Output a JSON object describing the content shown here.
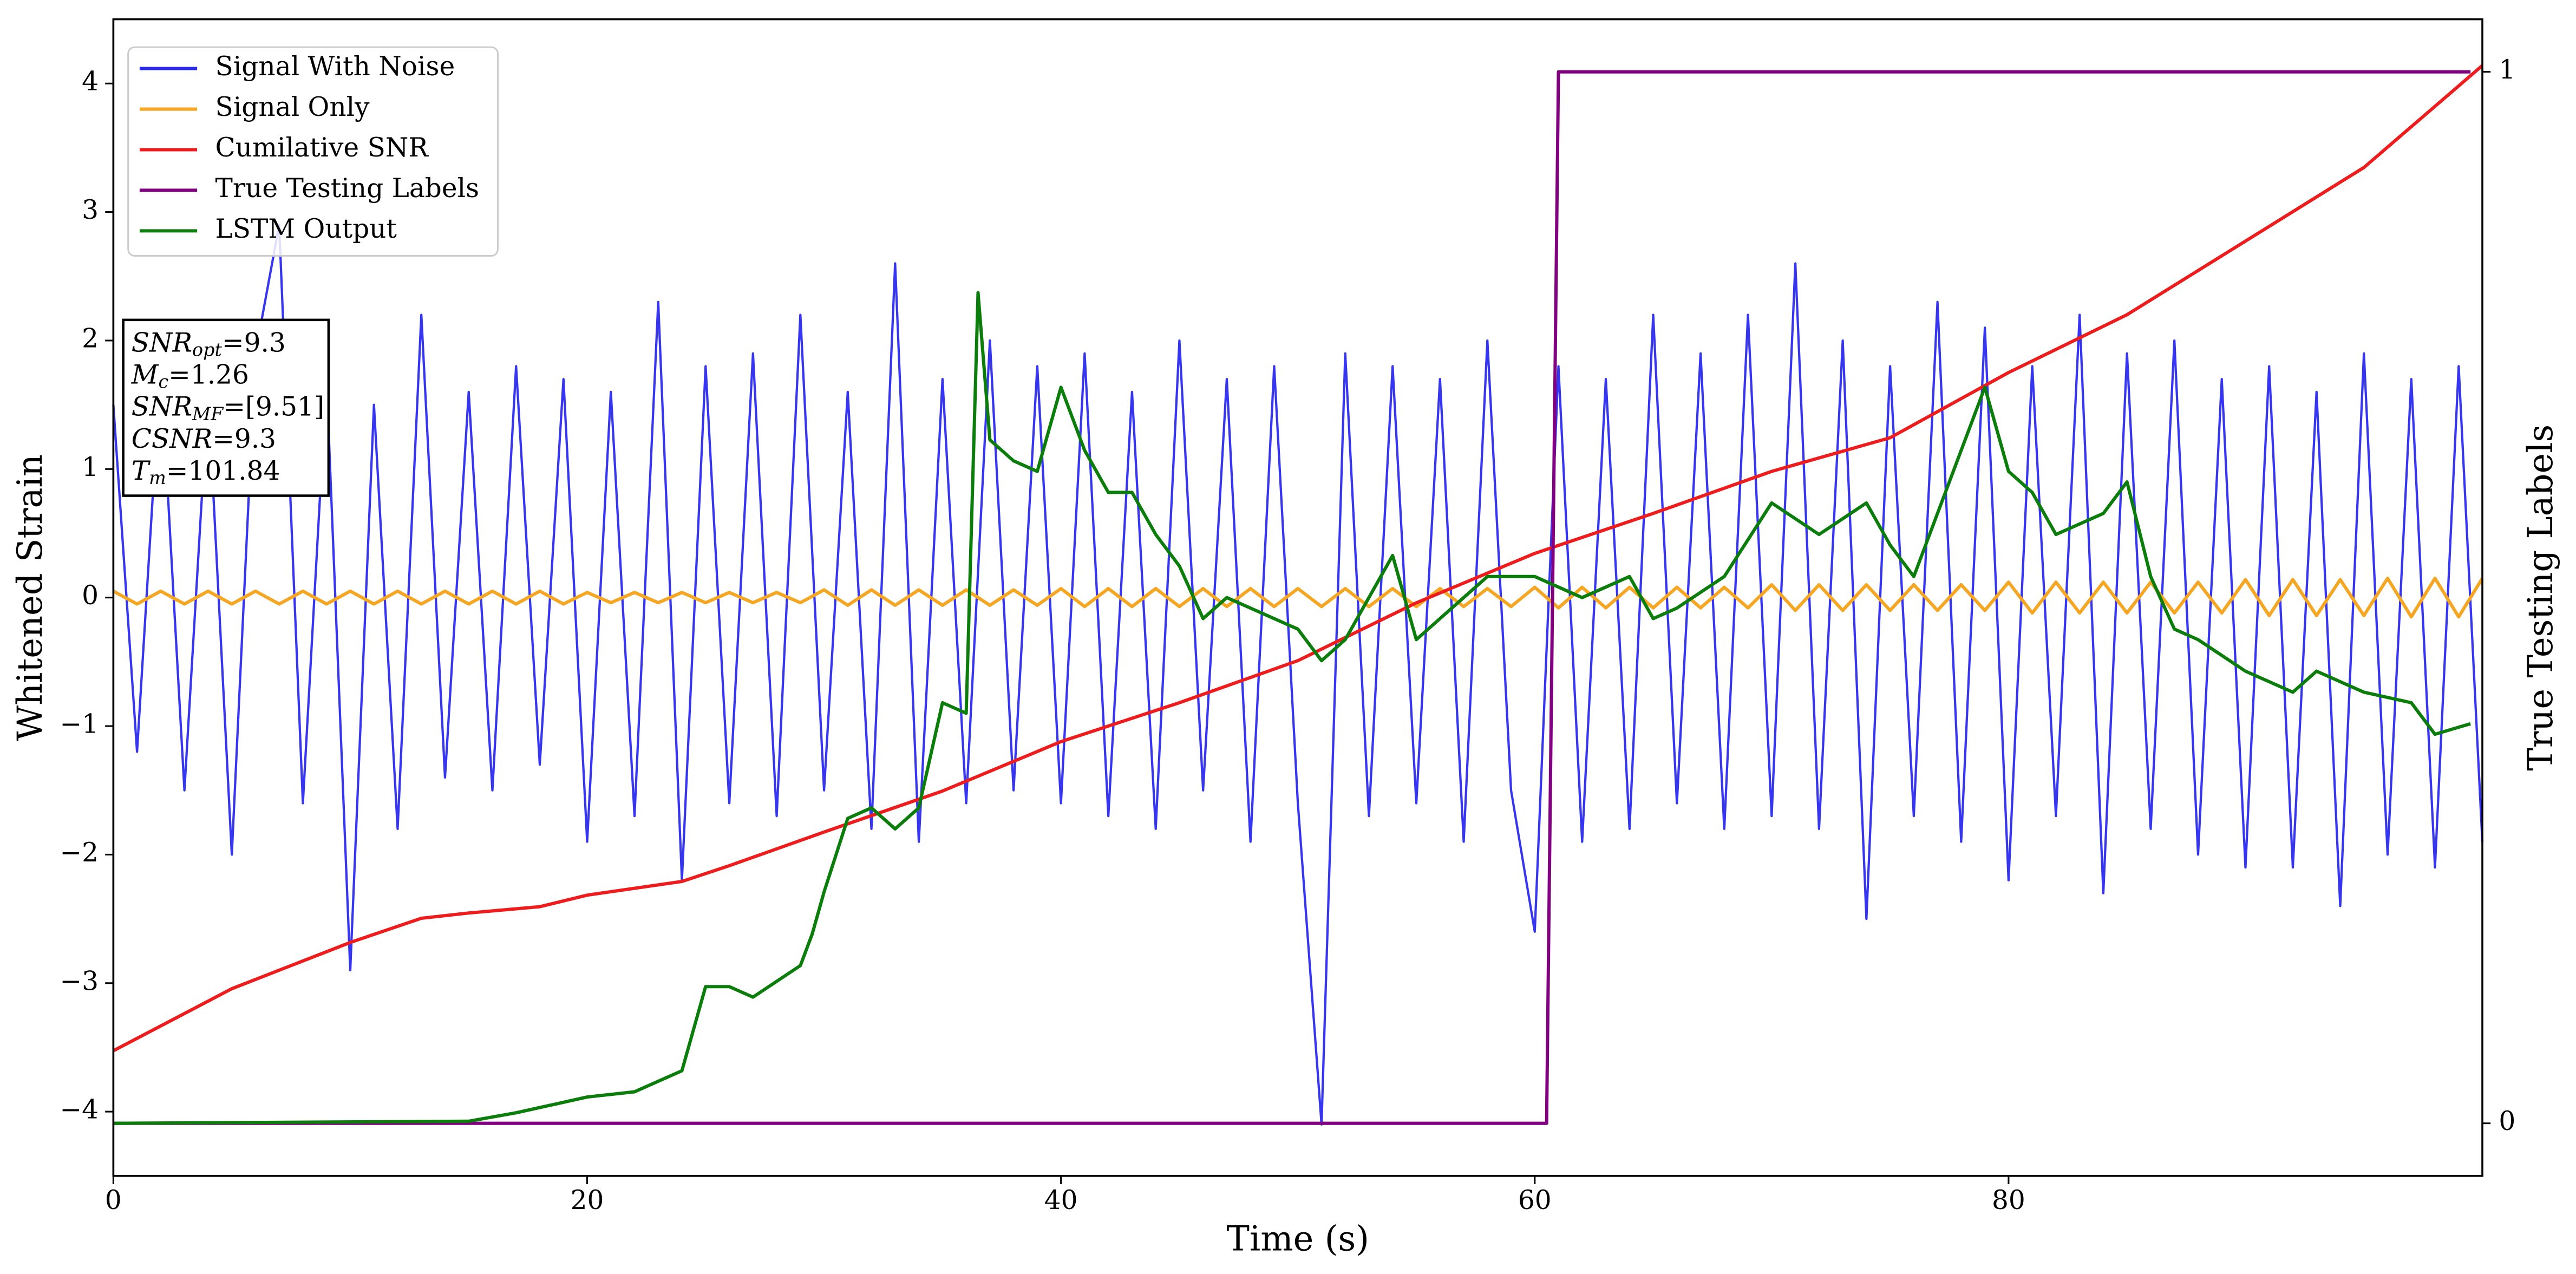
{
  "chart_data": {
    "type": "line",
    "xlabel": "Time (s)",
    "ylabel": "Whitened Strain",
    "y2label": "True Testing Labels",
    "xlim": [
      0,
      100
    ],
    "xticks": [
      0,
      20,
      40,
      60,
      80
    ],
    "ylim": [
      -4.5,
      4.5
    ],
    "yticks": [
      {
        "value": -4,
        "label": "−4"
      },
      {
        "value": -3,
        "label": "−3"
      },
      {
        "value": -2,
        "label": "−2"
      },
      {
        "value": -1,
        "label": "−1"
      },
      0,
      1,
      2,
      3,
      4
    ],
    "y2lim": [
      -0.05,
      1.05
    ],
    "y2ticks": [
      0,
      1
    ],
    "legend": "upper left",
    "annotation": [
      {
        "base": "SNR",
        "sub": "opt",
        "text": "=9.3"
      },
      {
        "base": "M",
        "sub": "c",
        "text": "=1.26"
      },
      {
        "base": "SNR",
        "sub": "MF",
        "text": "=[9.51]"
      },
      {
        "base": "CSNR",
        "sub": "",
        "text": "=9.3"
      },
      {
        "base": "T",
        "sub": "m",
        "text": "=101.84"
      }
    ],
    "series": [
      {
        "name": "Signal With Noise",
        "color": "#2b2bf0",
        "x": [
          0,
          1,
          2,
          3,
          4,
          5,
          6,
          7,
          8,
          9,
          10,
          11,
          12,
          13,
          14,
          15,
          16,
          17,
          18,
          19,
          20,
          21,
          22,
          23,
          24,
          25,
          26,
          27,
          28,
          29,
          30,
          31,
          32,
          33,
          34,
          35,
          36,
          37,
          38,
          39,
          40,
          41,
          42,
          43,
          44,
          45,
          46,
          47,
          48,
          49,
          50,
          51,
          52,
          53,
          54,
          55,
          56,
          57,
          58,
          59,
          60,
          61,
          62,
          63,
          64,
          65,
          66,
          67,
          68,
          69,
          70,
          71,
          72,
          73,
          74,
          75,
          76,
          77,
          78,
          79,
          80,
          81,
          82,
          83,
          84,
          85,
          86,
          87,
          88,
          89,
          90,
          91,
          92,
          93,
          94,
          95,
          96,
          97,
          98,
          99,
          100
        ],
        "values": [
          1.5,
          -1.2,
          1.8,
          -1.5,
          1.6,
          -2.0,
          1.9,
          2.9,
          -1.6,
          1.7,
          -2.9,
          1.5,
          -1.8,
          2.2,
          -1.4,
          1.6,
          -1.5,
          1.8,
          -1.3,
          1.7,
          -1.9,
          1.6,
          -1.7,
          2.3,
          -2.2,
          1.8,
          -1.6,
          1.9,
          -1.7,
          2.2,
          -1.5,
          1.6,
          -1.8,
          2.6,
          -1.9,
          1.7,
          -1.6,
          2.0,
          -1.5,
          1.8,
          -1.6,
          1.9,
          -1.7,
          1.6,
          -1.8,
          2.0,
          -1.5,
          1.7,
          -1.9,
          1.8,
          -1.6,
          -4.1,
          1.9,
          -1.7,
          1.8,
          -1.6,
          1.7,
          -1.9,
          2.0,
          -1.5,
          -2.6,
          1.8,
          -1.9,
          1.7,
          -1.8,
          2.2,
          -1.6,
          1.9,
          -1.8,
          2.2,
          -1.7,
          2.6,
          -1.8,
          2.0,
          -2.5,
          1.8,
          -1.7,
          2.3,
          -1.9,
          2.1,
          -2.2,
          1.8,
          -1.7,
          2.2,
          -2.3,
          1.9,
          -1.8,
          2.0,
          -2.0,
          1.7,
          -2.1,
          1.8,
          -2.1,
          1.6,
          -2.4,
          1.9,
          -2.0,
          1.7,
          -2.1,
          1.8,
          -1.9
        ]
      },
      {
        "name": "Signal Only",
        "color": "#f5a623",
        "x": [
          0,
          1,
          2,
          3,
          4,
          5,
          6,
          7,
          8,
          9,
          10,
          11,
          12,
          13,
          14,
          15,
          16,
          17,
          18,
          19,
          20,
          21,
          22,
          23,
          24,
          25,
          26,
          27,
          28,
          29,
          30,
          31,
          32,
          33,
          34,
          35,
          36,
          37,
          38,
          39,
          40,
          41,
          42,
          43,
          44,
          45,
          46,
          47,
          48,
          49,
          50,
          51,
          52,
          53,
          54,
          55,
          56,
          57,
          58,
          59,
          60,
          61,
          62,
          63,
          64,
          65,
          66,
          67,
          68,
          69,
          70,
          71,
          72,
          73,
          74,
          75,
          76,
          77,
          78,
          79,
          80,
          81,
          82,
          83,
          84,
          85,
          86,
          87,
          88,
          89,
          90,
          91,
          92,
          93,
          94,
          95,
          96,
          97,
          98,
          99,
          100
        ],
        "values": [
          0.05,
          -0.05,
          0.05,
          -0.05,
          0.05,
          -0.05,
          0.05,
          -0.05,
          0.05,
          -0.05,
          0.05,
          -0.05,
          0.05,
          -0.05,
          0.05,
          -0.05,
          0.05,
          -0.05,
          0.05,
          -0.05,
          0.04,
          -0.04,
          0.04,
          -0.04,
          0.04,
          -0.04,
          0.04,
          -0.04,
          0.04,
          -0.04,
          0.06,
          -0.06,
          0.06,
          -0.06,
          0.06,
          -0.06,
          0.06,
          -0.06,
          0.06,
          -0.06,
          0.07,
          -0.07,
          0.07,
          -0.07,
          0.07,
          -0.07,
          0.07,
          -0.07,
          0.07,
          -0.07,
          0.07,
          -0.07,
          0.07,
          -0.07,
          0.07,
          -0.07,
          0.07,
          -0.07,
          0.07,
          -0.07,
          0.08,
          -0.08,
          0.08,
          -0.08,
          0.08,
          -0.08,
          0.08,
          -0.08,
          0.08,
          -0.08,
          0.1,
          -0.1,
          0.1,
          -0.1,
          0.1,
          -0.1,
          0.1,
          -0.1,
          0.1,
          -0.1,
          0.12,
          -0.12,
          0.12,
          -0.12,
          0.12,
          -0.12,
          0.12,
          -0.12,
          0.12,
          -0.12,
          0.14,
          -0.14,
          0.14,
          -0.14,
          0.14,
          -0.14,
          0.15,
          -0.15,
          0.15,
          -0.15,
          0.15
        ]
      },
      {
        "name": "Cumilative SNR",
        "color": "#ee1c1c",
        "axis": "y2",
        "x": [
          0,
          5,
          10,
          13,
          15,
          18,
          20,
          24,
          26,
          30,
          35,
          40,
          45,
          50,
          55,
          60,
          65,
          70,
          75,
          80,
          85,
          90,
          95,
          100
        ],
        "values": [
          0.069,
          0.128,
          0.172,
          0.195,
          0.2,
          0.206,
          0.217,
          0.23,
          0.245,
          0.277,
          0.316,
          0.363,
          0.4,
          0.44,
          0.495,
          0.542,
          0.58,
          0.62,
          0.652,
          0.714,
          0.769,
          0.839,
          0.909,
          1.006
        ]
      },
      {
        "name": "True Testing Labels",
        "color": "#800080",
        "axis": "y2",
        "x": [
          0,
          60.5,
          61,
          99.5
        ],
        "values": [
          0,
          0,
          1,
          1
        ]
      },
      {
        "name": "LSTM Output",
        "color": "#0a7d0a",
        "axis": "y2",
        "x": [
          0,
          15,
          17,
          19,
          20,
          22,
          24,
          25,
          26,
          27,
          29,
          29.5,
          30,
          31,
          32,
          33,
          34,
          35,
          36,
          36.5,
          37,
          38,
          39,
          40,
          41,
          42,
          43,
          44,
          45,
          46,
          47,
          48,
          50,
          51,
          52,
          53,
          54,
          55,
          56,
          57,
          58,
          60,
          62,
          64,
          65,
          66,
          68,
          70,
          72,
          74,
          75,
          76,
          78,
          79,
          80,
          81,
          82,
          84,
          85,
          86,
          87,
          88,
          90,
          92,
          93,
          95,
          97,
          98,
          99.5
        ],
        "values": [
          0,
          0.002,
          0.01,
          0.02,
          0.025,
          0.03,
          0.05,
          0.13,
          0.13,
          0.12,
          0.15,
          0.18,
          0.22,
          0.29,
          0.3,
          0.28,
          0.3,
          0.4,
          0.39,
          0.79,
          0.65,
          0.63,
          0.62,
          0.7,
          0.64,
          0.6,
          0.6,
          0.56,
          0.53,
          0.48,
          0.5,
          0.49,
          0.47,
          0.44,
          0.46,
          0.5,
          0.54,
          0.46,
          0.48,
          0.5,
          0.52,
          0.52,
          0.5,
          0.52,
          0.48,
          0.49,
          0.52,
          0.59,
          0.56,
          0.59,
          0.55,
          0.52,
          0.64,
          0.7,
          0.62,
          0.6,
          0.56,
          0.58,
          0.61,
          0.52,
          0.47,
          0.46,
          0.43,
          0.41,
          0.43,
          0.41,
          0.4,
          0.37,
          0.38
        ]
      }
    ]
  }
}
